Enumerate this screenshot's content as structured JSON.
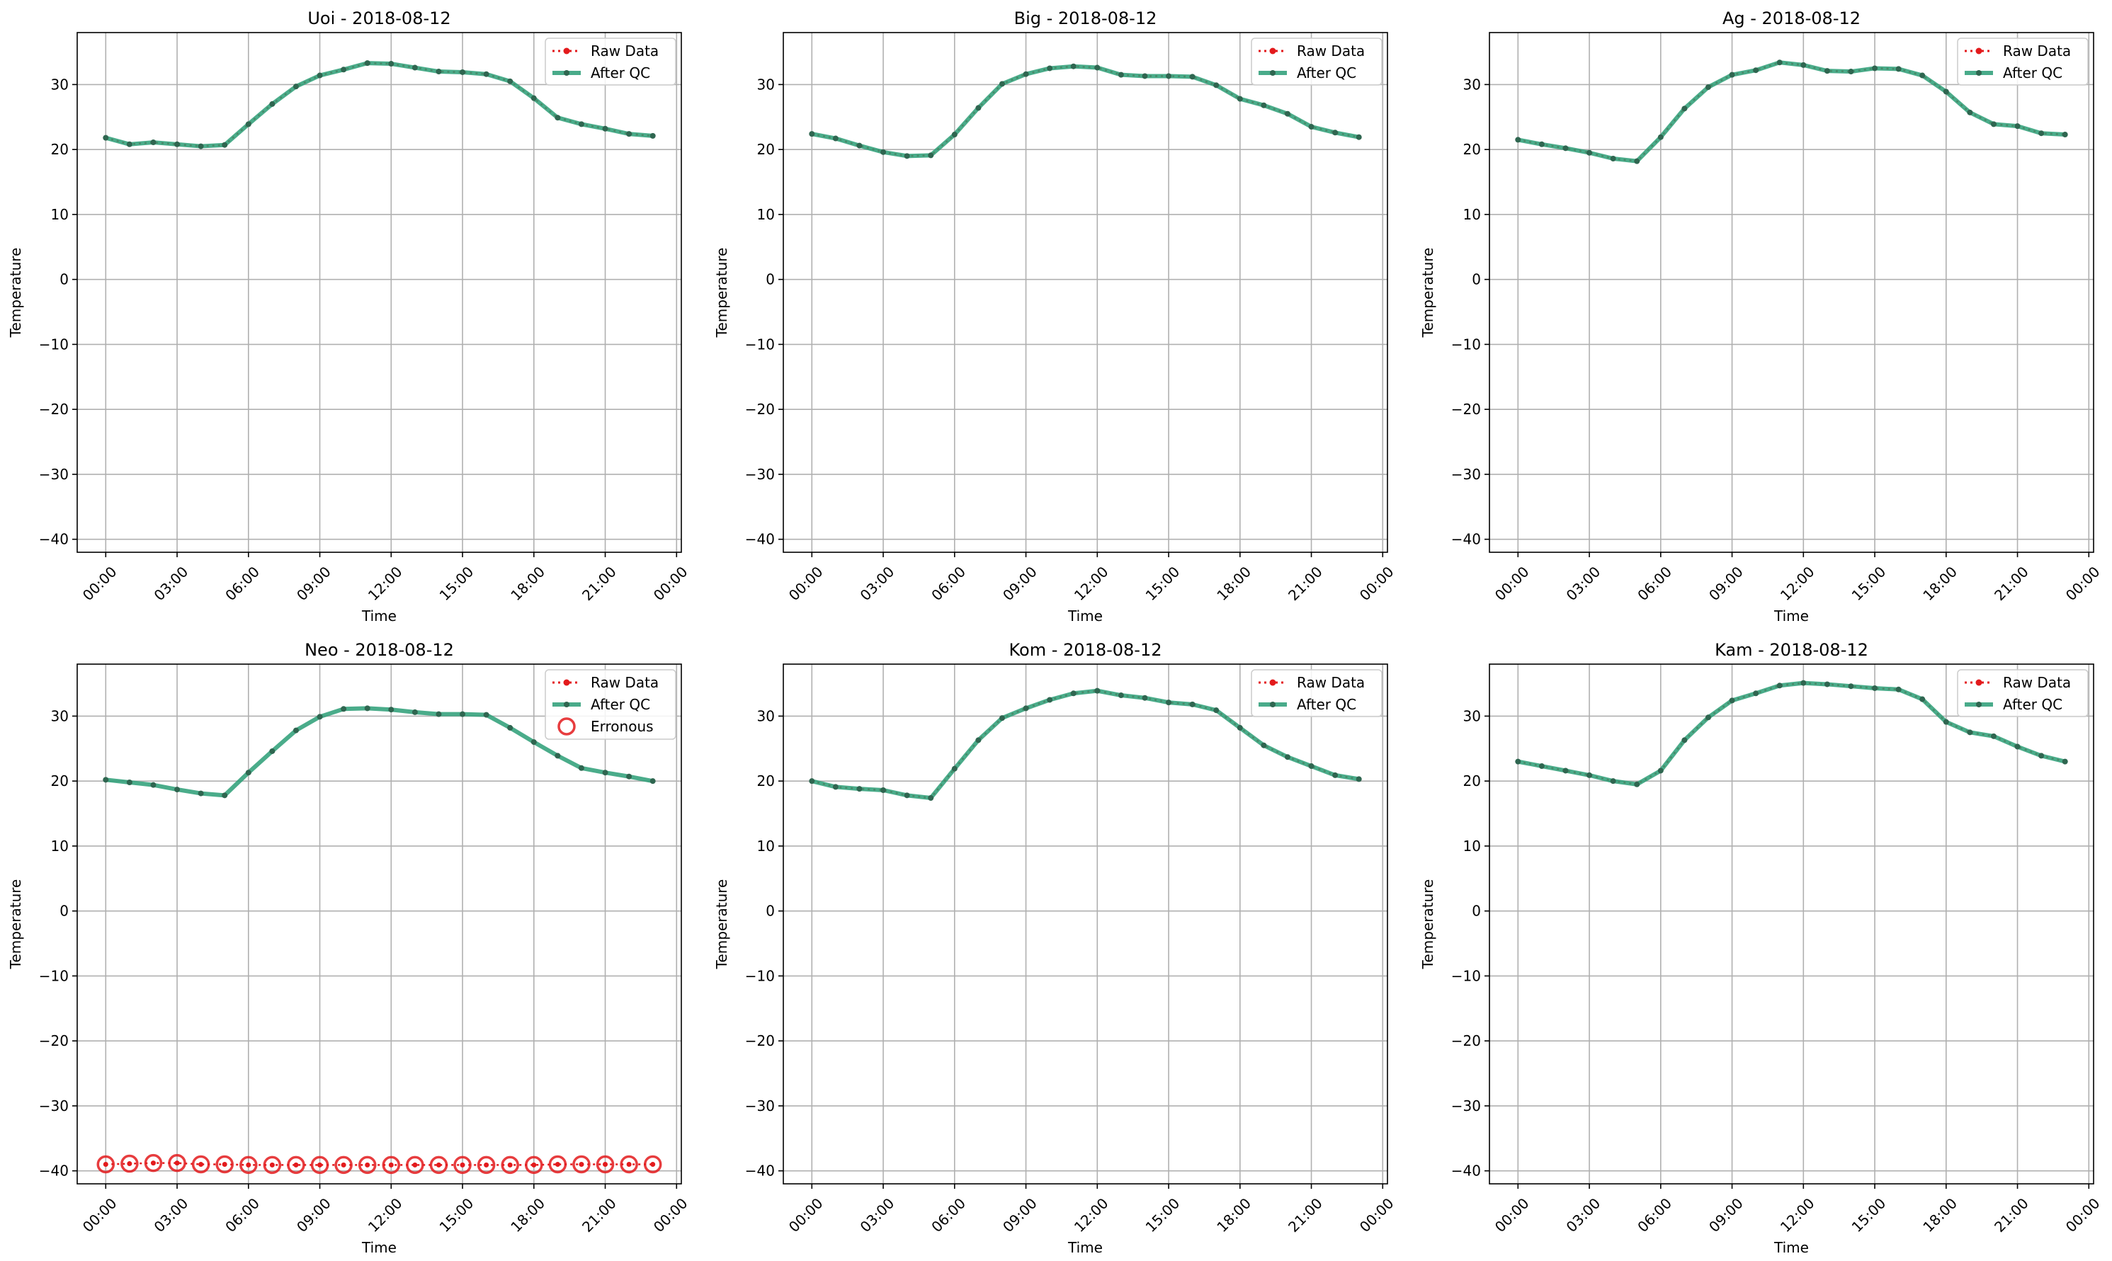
{
  "colors": {
    "raw": "#e31a1c",
    "qc": "#2a9d76",
    "qc_marker": "#2f6650",
    "error": "#e31a1c",
    "grid": "#b0b0b0"
  },
  "legend": {
    "raw_label": "Raw Data",
    "qc_label": "After QC",
    "error_label": "Erronous",
    "placement": "top-right"
  },
  "chart_data": [
    {
      "type": "line",
      "title": "Uoi - 2018-08-12",
      "xlabel": "Time",
      "ylabel": "Temperature",
      "x_ticks": [
        "00:00",
        "03:00",
        "06:00",
        "09:00",
        "12:00",
        "15:00",
        "18:00",
        "21:00",
        "00:00"
      ],
      "x_range_hours": [
        -1.2,
        24.2
      ],
      "ylim": [
        -42,
        38
      ],
      "y_ticks": [
        -40,
        -30,
        -20,
        -10,
        0,
        10,
        20,
        30
      ],
      "grid": true,
      "x_hours": [
        0,
        1,
        2,
        3,
        4,
        5,
        6,
        7,
        8,
        9,
        10,
        11,
        12,
        13,
        14,
        15,
        16,
        17,
        18,
        19,
        20,
        21,
        22,
        23
      ],
      "series": [
        {
          "name": "Raw Data",
          "values": [
            21.8,
            20.8,
            21.1,
            20.8,
            20.5,
            20.7,
            23.9,
            27.0,
            29.7,
            31.4,
            32.3,
            33.3,
            33.2,
            32.6,
            32.0,
            31.9,
            31.6,
            30.5,
            27.9,
            24.9,
            23.9,
            23.2,
            22.4,
            22.1
          ]
        },
        {
          "name": "After QC",
          "values": [
            21.8,
            20.8,
            21.1,
            20.8,
            20.5,
            20.7,
            23.9,
            27.0,
            29.7,
            31.4,
            32.3,
            33.3,
            33.2,
            32.6,
            32.0,
            31.9,
            31.6,
            30.5,
            27.9,
            24.9,
            23.9,
            23.2,
            22.4,
            22.1
          ]
        }
      ]
    },
    {
      "type": "line",
      "title": "Big - 2018-08-12",
      "xlabel": "Time",
      "ylabel": "Temperature",
      "x_ticks": [
        "00:00",
        "03:00",
        "06:00",
        "09:00",
        "12:00",
        "15:00",
        "18:00",
        "21:00",
        "00:00"
      ],
      "x_range_hours": [
        -1.2,
        24.2
      ],
      "ylim": [
        -42,
        38
      ],
      "y_ticks": [
        -40,
        -30,
        -20,
        -10,
        0,
        10,
        20,
        30
      ],
      "grid": true,
      "x_hours": [
        0,
        1,
        2,
        3,
        4,
        5,
        6,
        7,
        8,
        9,
        10,
        11,
        12,
        13,
        14,
        15,
        16,
        17,
        18,
        19,
        20,
        21,
        22,
        23
      ],
      "series": [
        {
          "name": "Raw Data",
          "values": [
            22.4,
            21.7,
            20.6,
            19.6,
            19.0,
            19.1,
            22.3,
            26.4,
            30.1,
            31.6,
            32.5,
            32.8,
            32.6,
            31.5,
            31.3,
            31.3,
            31.2,
            29.9,
            27.8,
            26.8,
            25.5,
            23.5,
            22.6,
            21.9
          ]
        },
        {
          "name": "After QC",
          "values": [
            22.4,
            21.7,
            20.6,
            19.6,
            19.0,
            19.1,
            22.3,
            26.4,
            30.1,
            31.6,
            32.5,
            32.8,
            32.6,
            31.5,
            31.3,
            31.3,
            31.2,
            29.9,
            27.8,
            26.8,
            25.5,
            23.5,
            22.6,
            21.9
          ]
        }
      ]
    },
    {
      "type": "line",
      "title": "Ag - 2018-08-12",
      "xlabel": "Time",
      "ylabel": "Temperature",
      "x_ticks": [
        "00:00",
        "03:00",
        "06:00",
        "09:00",
        "12:00",
        "15:00",
        "18:00",
        "21:00",
        "00:00"
      ],
      "x_range_hours": [
        -1.2,
        24.2
      ],
      "ylim": [
        -42,
        38
      ],
      "y_ticks": [
        -40,
        -30,
        -20,
        -10,
        0,
        10,
        20,
        30
      ],
      "grid": true,
      "x_hours": [
        0,
        1,
        2,
        3,
        4,
        5,
        6,
        7,
        8,
        9,
        10,
        11,
        12,
        13,
        14,
        15,
        16,
        17,
        18,
        19,
        20,
        21,
        22,
        23
      ],
      "series": [
        {
          "name": "Raw Data",
          "values": [
            21.5,
            20.8,
            20.2,
            19.5,
            18.6,
            18.2,
            21.9,
            26.3,
            29.6,
            31.5,
            32.2,
            33.4,
            33.0,
            32.1,
            32.0,
            32.5,
            32.4,
            31.4,
            28.9,
            25.7,
            23.9,
            23.6,
            22.5,
            22.3
          ]
        },
        {
          "name": "After QC",
          "values": [
            21.5,
            20.8,
            20.2,
            19.5,
            18.6,
            18.2,
            21.9,
            26.3,
            29.6,
            31.5,
            32.2,
            33.4,
            33.0,
            32.1,
            32.0,
            32.5,
            32.4,
            31.4,
            28.9,
            25.7,
            23.9,
            23.6,
            22.5,
            22.3
          ]
        }
      ]
    },
    {
      "type": "line",
      "title": "Neo - 2018-08-12",
      "xlabel": "Time",
      "ylabel": "Temperature",
      "x_ticks": [
        "00:00",
        "03:00",
        "06:00",
        "09:00",
        "12:00",
        "15:00",
        "18:00",
        "21:00",
        "00:00"
      ],
      "x_range_hours": [
        -1.2,
        24.2
      ],
      "ylim": [
        -42,
        38
      ],
      "y_ticks": [
        -40,
        -30,
        -20,
        -10,
        0,
        10,
        20,
        30
      ],
      "grid": true,
      "x_hours": [
        0,
        1,
        2,
        3,
        4,
        5,
        6,
        7,
        8,
        9,
        10,
        11,
        12,
        13,
        14,
        15,
        16,
        17,
        18,
        19,
        20,
        21,
        22,
        23
      ],
      "series": [
        {
          "name": "Raw Data",
          "values": [
            -39.0,
            -38.9,
            -38.8,
            -38.8,
            -39.0,
            -39.0,
            -39.1,
            -39.1,
            -39.1,
            -39.1,
            -39.1,
            -39.1,
            -39.1,
            -39.1,
            -39.1,
            -39.1,
            -39.1,
            -39.1,
            -39.1,
            -39.0,
            -39.0,
            -39.0,
            -39.0,
            -39.0
          ]
        },
        {
          "name": "After QC",
          "values": [
            20.2,
            19.8,
            19.4,
            18.7,
            18.1,
            17.8,
            21.3,
            24.6,
            27.8,
            29.9,
            31.1,
            31.2,
            31.0,
            30.6,
            30.3,
            30.3,
            30.2,
            28.2,
            26.0,
            23.9,
            22.0,
            21.3,
            20.7,
            20.0
          ]
        },
        {
          "name": "Erronous",
          "values": [
            -39.0,
            -38.9,
            -38.8,
            -38.8,
            -39.0,
            -39.0,
            -39.1,
            -39.1,
            -39.1,
            -39.1,
            -39.1,
            -39.1,
            -39.1,
            -39.1,
            -39.1,
            -39.1,
            -39.1,
            -39.1,
            -39.1,
            -39.0,
            -39.0,
            -39.0,
            -39.0,
            -39.0
          ]
        }
      ]
    },
    {
      "type": "line",
      "title": "Kom - 2018-08-12",
      "xlabel": "Time",
      "ylabel": "Temperature",
      "x_ticks": [
        "00:00",
        "03:00",
        "06:00",
        "09:00",
        "12:00",
        "15:00",
        "18:00",
        "21:00",
        "00:00"
      ],
      "x_range_hours": [
        -1.2,
        24.2
      ],
      "ylim": [
        -42,
        38
      ],
      "y_ticks": [
        -40,
        -30,
        -20,
        -10,
        0,
        10,
        20,
        30
      ],
      "grid": true,
      "x_hours": [
        0,
        1,
        2,
        3,
        4,
        5,
        6,
        7,
        8,
        9,
        10,
        11,
        12,
        13,
        14,
        15,
        16,
        17,
        18,
        19,
        20,
        21,
        22,
        23
      ],
      "series": [
        {
          "name": "Raw Data",
          "values": [
            20.0,
            19.1,
            18.8,
            18.6,
            17.8,
            17.4,
            21.9,
            26.3,
            29.7,
            31.2,
            32.5,
            33.5,
            33.9,
            33.2,
            32.8,
            32.1,
            31.8,
            30.9,
            28.2,
            25.5,
            23.7,
            22.3,
            20.9,
            20.3
          ]
        },
        {
          "name": "After QC",
          "values": [
            20.0,
            19.1,
            18.8,
            18.6,
            17.8,
            17.4,
            21.9,
            26.3,
            29.7,
            31.2,
            32.5,
            33.5,
            33.9,
            33.2,
            32.8,
            32.1,
            31.8,
            30.9,
            28.2,
            25.5,
            23.7,
            22.3,
            20.9,
            20.3
          ]
        }
      ]
    },
    {
      "type": "line",
      "title": "Kam - 2018-08-12",
      "xlabel": "Time",
      "ylabel": "Temperature",
      "x_ticks": [
        "00:00",
        "03:00",
        "06:00",
        "09:00",
        "12:00",
        "15:00",
        "18:00",
        "21:00",
        "00:00"
      ],
      "x_range_hours": [
        -1.2,
        24.2
      ],
      "ylim": [
        -42,
        38
      ],
      "y_ticks": [
        -40,
        -30,
        -20,
        -10,
        0,
        10,
        20,
        30
      ],
      "grid": true,
      "x_hours": [
        0,
        1,
        2,
        3,
        4,
        5,
        6,
        7,
        8,
        9,
        10,
        11,
        12,
        13,
        14,
        15,
        16,
        17,
        18,
        19,
        20,
        21,
        22,
        23
      ],
      "series": [
        {
          "name": "Raw Data",
          "values": [
            23.0,
            22.3,
            21.6,
            20.9,
            20.0,
            19.5,
            21.6,
            26.3,
            29.8,
            32.4,
            33.5,
            34.7,
            35.1,
            34.9,
            34.6,
            34.3,
            34.1,
            32.6,
            29.1,
            27.5,
            26.9,
            25.3,
            23.9,
            23.0
          ]
        },
        {
          "name": "After QC",
          "values": [
            23.0,
            22.3,
            21.6,
            20.9,
            20.0,
            19.5,
            21.6,
            26.3,
            29.8,
            32.4,
            33.5,
            34.7,
            35.1,
            34.9,
            34.6,
            34.3,
            34.1,
            32.6,
            29.1,
            27.5,
            26.9,
            25.3,
            23.9,
            23.0
          ]
        }
      ]
    }
  ]
}
